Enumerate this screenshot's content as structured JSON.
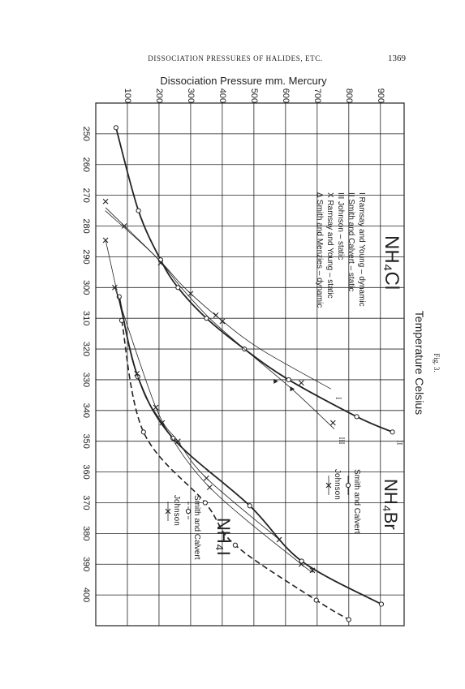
{
  "header": {
    "title": "DISSOCIATION PRESSURES OF HALIDES, ETC.",
    "page_number": "1369"
  },
  "caption": "Fig. 3.",
  "chart_data": {
    "type": "line",
    "y_label": "Dissociation Pressure mm. Mercury",
    "x_label": "Temperature Celsius",
    "xlim": [
      240,
      410
    ],
    "xticks": [
      250,
      260,
      270,
      280,
      290,
      300,
      310,
      320,
      330,
      340,
      350,
      360,
      370,
      380,
      390,
      400
    ],
    "ylim": [
      0,
      975
    ],
    "yticks": [
      100,
      200,
      300,
      400,
      500,
      600,
      700,
      800,
      900
    ],
    "grid": true,
    "color": "#222222",
    "groups": [
      {
        "label": "NH₄Cl",
        "series": [
          {
            "name": "I Ramsay and Young – dynamic",
            "curve_label": "I",
            "marker": "none",
            "line": "thin",
            "x": [
              274,
              291,
              300,
              310,
              320,
              333
            ],
            "values": [
              31,
              200,
              280,
              390,
              520,
              744
            ]
          },
          {
            "name": "II Smith and Calvert – static",
            "curve_label": "II",
            "marker": "circle",
            "line": "heavy",
            "x": [
              248,
              275,
              291,
              300,
              310,
              320,
              330,
              342,
              347
            ],
            "values": [
              64,
              135,
              205,
              260,
              350,
              470,
              610,
              825,
              938
            ]
          },
          {
            "name": "III Johnson – static",
            "curve_label": "III",
            "marker": "none",
            "line": "thin",
            "x": [
              275,
              290,
              300,
              310,
              320,
              333,
              346
            ],
            "values": [
              30,
              190,
              270,
              360,
              470,
              620,
              754
            ]
          },
          {
            "name": "X Ramsay and Young – static",
            "marker": "cross",
            "line": "none",
            "x": [
              272,
              280,
              292,
              302,
              309,
              311,
              331,
              344
            ],
            "values": [
              31,
              90,
              205,
              300,
              380,
              400,
              650,
              750
            ]
          },
          {
            "name": "Δ Smith and Menzies – dynamic",
            "marker": "triangle",
            "line": "none",
            "x": [
              330.5,
              333
            ],
            "values": [
              569,
              621
            ]
          }
        ]
      },
      {
        "label": "NH₄Br",
        "series": [
          {
            "name": "Smith and Calvert",
            "marker": "circle",
            "line": "heavy",
            "x": [
              303,
              329,
              349,
              371,
              389,
              403
            ],
            "values": [
              74,
              133,
              244,
              487,
              651,
              903
            ]
          },
          {
            "name": "Johnson",
            "marker": "cross",
            "line": "thin",
            "x": [
              284.6,
              328,
              344,
              365,
              390,
              392
            ],
            "values": [
              31,
              130,
              210,
              360,
              650,
              685
            ]
          }
        ]
      },
      {
        "label": "NH₄I",
        "series": [
          {
            "name": "Smith and Calvert",
            "marker": "circle",
            "line": "dashed",
            "x": [
              310.7,
              347,
              370,
              383.8,
              401.7,
              408
            ],
            "values": [
              82,
              151,
              346,
              441,
              697,
              800
            ]
          },
          {
            "name": "Johnson",
            "marker": "cross",
            "line": "thin",
            "x": [
              300,
              339,
              350,
              362,
              382
            ],
            "values": [
              60,
              190,
              260,
              350,
              580
            ]
          }
        ]
      }
    ]
  }
}
